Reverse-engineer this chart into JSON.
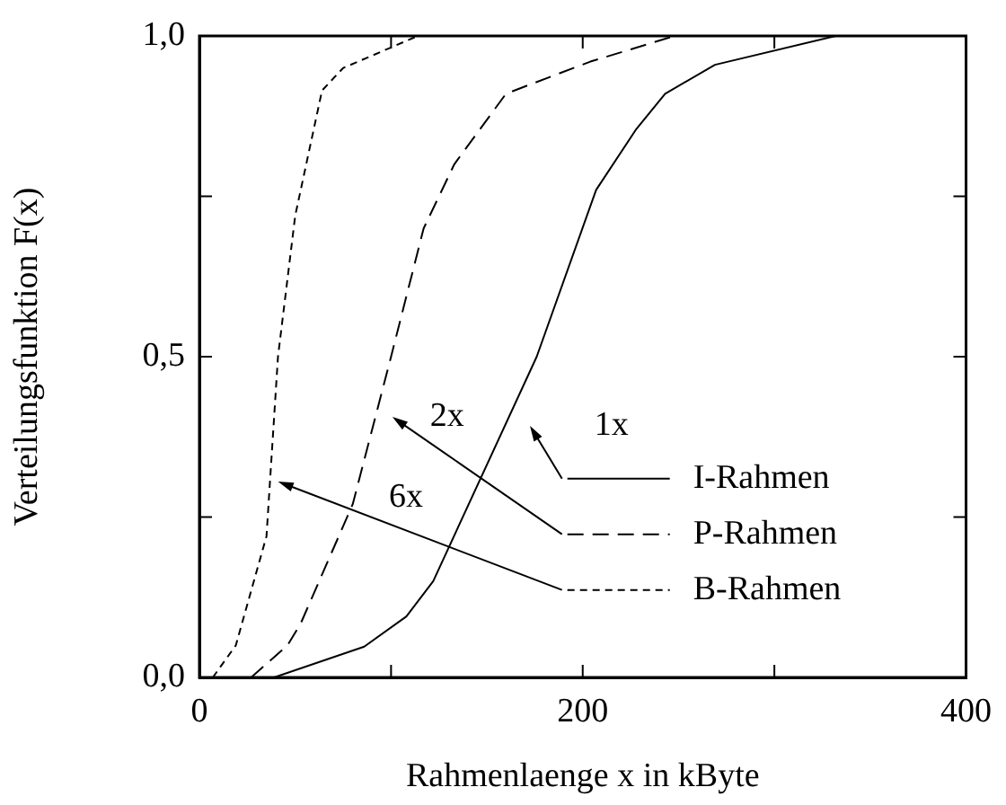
{
  "chart_data": {
    "type": "line",
    "xlabel": "Rahmenlaenge x in kByte",
    "ylabel": "Verteilungsfunktion F(x)",
    "xlim": [
      0,
      400
    ],
    "xticks": [
      0,
      {
        "value": 100,
        "label": null
      },
      200,
      {
        "value": 300,
        "label": null
      },
      400
    ],
    "ylim": [
      0,
      1
    ],
    "yticks": [
      {
        "value": 0,
        "label": "0,0"
      },
      {
        "value": 0.25,
        "label": null
      },
      {
        "value": 0.5,
        "label": "0,5"
      },
      {
        "value": 0.75,
        "label": null
      },
      {
        "value": 1,
        "label": "1,0"
      }
    ],
    "grid": false,
    "legend": "right",
    "marker": "none",
    "series": [
      {
        "name": "I-Rahmen",
        "color": "#000000",
        "line_style": "solid",
        "x": [
          39,
          86,
          108,
          122,
          176,
          207,
          228,
          243,
          269,
          332
        ],
        "values": [
          0,
          0.048,
          0.095,
          0.15,
          0.5,
          0.76,
          0.855,
          0.91,
          0.955,
          1.0
        ]
      },
      {
        "name": "P-Rahmen",
        "color": "#000000",
        "line_style": "dashed",
        "x": [
          27,
          46,
          53,
          80,
          100,
          117,
          133,
          160,
          204,
          248
        ],
        "values": [
          0,
          0.05,
          0.085,
          0.27,
          0.5,
          0.7,
          0.8,
          0.91,
          0.96,
          1.0
        ]
      },
      {
        "name": "B-Rahmen",
        "color": "#000000",
        "line_style": "dotted",
        "x": [
          7,
          19,
          35,
          41,
          50,
          64,
          75,
          114
        ],
        "values": [
          0,
          0.05,
          0.22,
          0.5,
          0.72,
          0.915,
          0.95,
          1.0
        ]
      }
    ],
    "annotations": [
      "1x",
      "2x",
      "6x"
    ]
  }
}
